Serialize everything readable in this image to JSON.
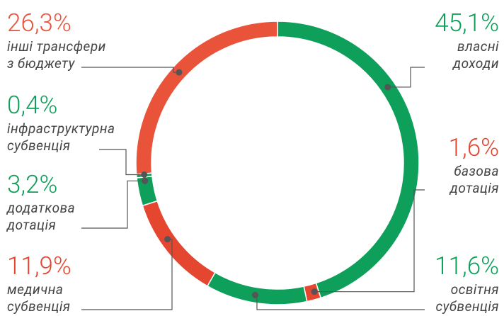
{
  "chart_data": {
    "type": "donut",
    "categories": [
      "власні\nдоходи",
      "базова\nдотація",
      "освітня\nсубвенція",
      "медична\nсубвенція",
      "додаткова\nдотація",
      "інфраструктурна\nсубвенція",
      "інші трансфери\nз бюджету"
    ],
    "values": [
      45.1,
      1.6,
      11.6,
      11.9,
      3.2,
      0.4,
      26.3
    ],
    "value_labels": [
      "45,1%",
      "1,6%",
      "11,6%",
      "11,9%",
      "3,2%",
      "0,4%",
      "26,3%"
    ],
    "colors": [
      "#0e9f5a",
      "#e5462f",
      "#0e9f5a",
      "#e5462f",
      "#0e9f5a",
      "#0e9f5a",
      "#e8533a"
    ]
  }
}
